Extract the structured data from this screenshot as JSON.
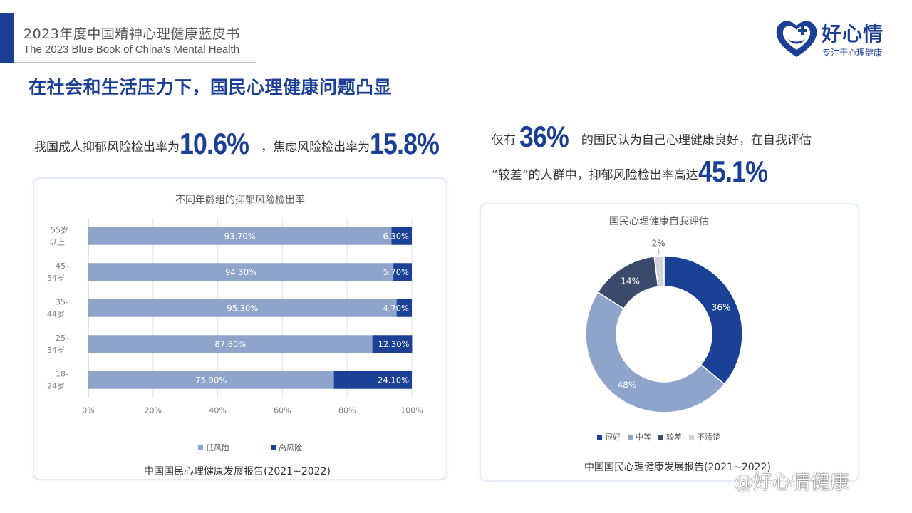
{
  "header": {
    "title_cn": "2023年度中国精神心理健康蓝皮书",
    "title_en": "The 2023 Blue Book of China's Mental Health"
  },
  "logo": {
    "name": "好心情",
    "tagline": "专注于心理健康"
  },
  "section_title": "在社会和生活压力下，国民心理健康问题凸显",
  "stats": {
    "left_prefix": "我国成人抑郁风险检出率为",
    "left_value_1": "10.6%",
    "left_middle": "，焦虑风险检出率为",
    "left_value_2": "15.8%",
    "right_line1_prefix": "仅有 ",
    "right_value_1": "36%",
    "right_line1_suffix": " 的国民认为自己心理健康良好，在自我评估",
    "right_line2_prefix": "“较差”的人群中，抑郁风险检出率高达",
    "right_value_2": "45.1%"
  },
  "colors": {
    "accent": "#1b3f95",
    "low_risk": "#8ea4cb",
    "high_risk": "#1a4196",
    "very_good": "#1a4196",
    "medium": "#8ea4cb",
    "poor": "#3b4a6b",
    "unclear": "#d0d3d8"
  },
  "chart_data": [
    {
      "type": "bar",
      "orientation": "horizontal",
      "stacked": true,
      "title": "不同年龄组的抑郁风险检出率",
      "categories": [
        "55岁以上",
        "45-54岁",
        "35-44岁",
        "25-34岁",
        "18-24岁"
      ],
      "series": [
        {
          "name": "低风险",
          "values": [
            93.7,
            94.3,
            95.3,
            87.8,
            75.9
          ],
          "labels": [
            "93.70%",
            "94.30%",
            "95.30%",
            "87.80%",
            "75.90%"
          ]
        },
        {
          "name": "高风险",
          "values": [
            6.3,
            5.7,
            4.7,
            12.3,
            24.1
          ],
          "labels": [
            "6.30%",
            "5.70%",
            "4.70%",
            "12.30%",
            "24.10%"
          ]
        }
      ],
      "xlim": [
        0,
        100
      ],
      "xticks": [
        "0%",
        "20%",
        "40%",
        "60%",
        "80%",
        "100%"
      ],
      "grid": true,
      "legend_position": "bottom",
      "source": "中国国民心理健康发展报告(2021~2022)"
    },
    {
      "type": "pie",
      "donut": true,
      "title": "国民心理健康自我评估",
      "slices": [
        {
          "name": "很好",
          "value": 36,
          "label": "36%"
        },
        {
          "name": "中等",
          "value": 48,
          "label": "48%"
        },
        {
          "name": "较差",
          "value": 14,
          "label": "14%"
        },
        {
          "name": "不清楚",
          "value": 2,
          "label": "2%"
        }
      ],
      "legend_position": "bottom",
      "source": "中国国民心理健康发展报告(2021~2022)"
    }
  ],
  "watermark": "@好心情健康"
}
